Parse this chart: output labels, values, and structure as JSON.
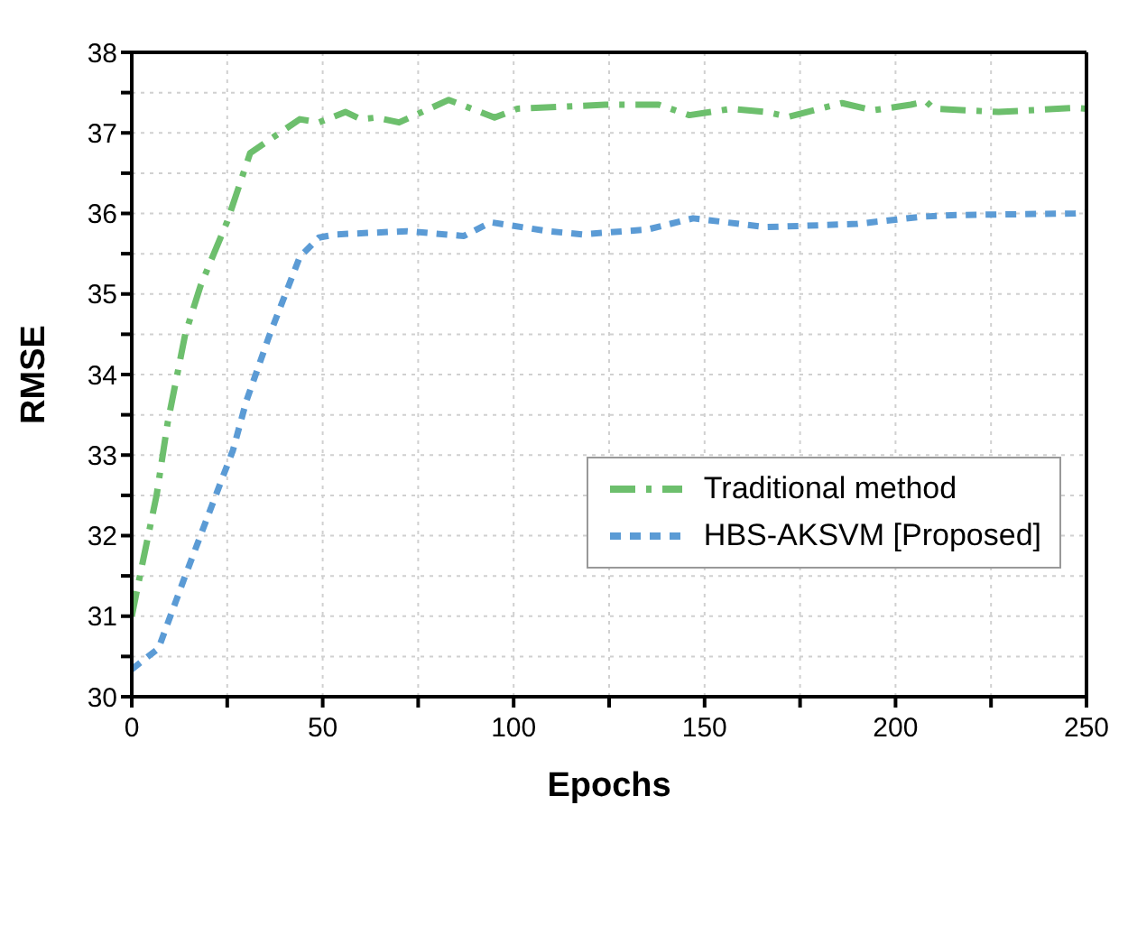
{
  "chart_data": {
    "type": "line",
    "xlabel": "Epochs",
    "ylabel": "RMSE",
    "xlim": [
      0,
      250
    ],
    "ylim": [
      30,
      38
    ],
    "xticks": [
      0,
      {
        "value": 25,
        "label": null
      },
      50,
      {
        "value": 75,
        "label": null
      },
      100,
      {
        "value": 125,
        "label": null
      },
      150,
      {
        "value": 175,
        "label": null
      },
      200,
      {
        "value": 225,
        "label": null
      },
      250
    ],
    "yticks": [
      30,
      {
        "value": 30.5,
        "label": null
      },
      31,
      {
        "value": 31.5,
        "label": null
      },
      32,
      {
        "value": 32.5,
        "label": null
      },
      33,
      {
        "value": 33.5,
        "label": null
      },
      34,
      {
        "value": 34.5,
        "label": null
      },
      35,
      {
        "value": 35.5,
        "label": null
      },
      36,
      {
        "value": 36.5,
        "label": null
      },
      37,
      {
        "value": 37.5,
        "label": null
      },
      38
    ],
    "grid": true,
    "legend": "right",
    "marker": "none",
    "series": [
      {
        "name": "Traditional method",
        "color": "#6dbf6d",
        "line_style": "dashdot",
        "x": [
          0,
          3,
          6.5,
          9.4,
          14,
          18,
          25,
          31,
          44,
          49,
          56,
          60,
          64,
          70,
          83,
          95,
          101,
          124,
          138,
          146,
          157,
          166,
          172,
          186,
          194,
          204,
          208,
          210,
          227,
          247,
          250
        ],
        "values": [
          31.0,
          31.7,
          32.5,
          33.4,
          34.5,
          35.1,
          35.9,
          36.75,
          37.17,
          37.13,
          37.26,
          37.17,
          37.19,
          37.13,
          37.41,
          37.19,
          37.3,
          37.35,
          37.35,
          37.22,
          37.3,
          37.26,
          37.2,
          37.37,
          37.28,
          37.35,
          37.39,
          37.3,
          37.26,
          37.31,
          37.3
        ]
      },
      {
        "name": "HBS-AKSVM [Proposed]",
        "color": "#5b9bd5",
        "line_style": "dashed",
        "x": [
          0,
          7,
          14,
          22,
          26.5,
          30,
          36,
          44,
          49,
          53.5,
          72,
          87,
          94,
          109,
          118,
          135,
          147,
          166,
          190,
          207,
          216,
          247,
          250
        ],
        "values": [
          30.34,
          30.6,
          31.5,
          32.5,
          33.06,
          33.67,
          34.48,
          35.46,
          35.7,
          35.74,
          35.78,
          35.72,
          35.89,
          35.78,
          35.74,
          35.8,
          35.94,
          35.83,
          35.87,
          35.96,
          35.98,
          36.0,
          36.01
        ]
      }
    ]
  }
}
